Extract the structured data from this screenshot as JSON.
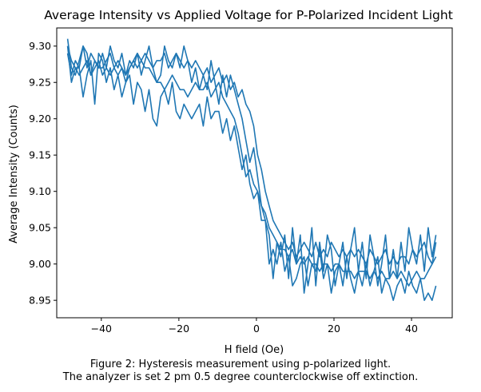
{
  "chart_data": {
    "type": "line",
    "title": "Average Intensity vs Applied Voltage for P-Polarized Incident Light",
    "xlabel": "H field (Oe)",
    "ylabel": "Average Intensity (Counts)",
    "xlim": [
      -51.5,
      50.5
    ],
    "ylim": [
      8.926,
      9.325
    ],
    "xticks": [
      -40,
      -20,
      0,
      20,
      40
    ],
    "xtick_labels": [
      "−40",
      "−20",
      "0",
      "20",
      "40"
    ],
    "yticks": [
      8.95,
      9.0,
      9.05,
      9.1,
      9.15,
      9.2,
      9.25,
      9.3
    ],
    "ytick_labels": [
      "8.95",
      "9.00",
      "9.05",
      "9.10",
      "9.15",
      "9.20",
      "9.25",
      "9.30"
    ],
    "grid": false,
    "legend": "none",
    "series": [
      {
        "color": "#1f77b4",
        "x": [
          -48.7,
          -47.7,
          -46.7,
          -45.7,
          -44.7,
          -43.7,
          -42.7,
          -41.7,
          -40.7,
          -39.7,
          -38.7,
          -37.7,
          -36.7,
          -35.7,
          -34.7,
          -33.7,
          -32.7,
          -31.7,
          -30.7,
          -29.7,
          -28.7,
          -27.7,
          -26.7,
          -25.7,
          -24.7,
          -23.7,
          -22.7,
          -21.7,
          -20.7,
          -19.7,
          -18.7,
          -17.7,
          -16.7,
          -15.7,
          -14.7,
          -13.7,
          -12.7,
          -11.7,
          -10.7,
          -9.7,
          -8.7,
          -7.7,
          -6.7,
          -5.7,
          -4.7,
          -3.7,
          -2.7,
          -1.7,
          -0.7,
          0.3,
          1.3,
          2.3,
          3.3,
          4.3,
          5.3,
          6.3,
          7.3,
          8.3,
          9.3,
          10.3,
          11.3,
          12.3,
          13.3,
          14.3,
          15.3,
          16.3,
          17.3,
          18.3,
          19.3,
          20.3,
          21.3,
          22.3,
          23.3,
          24.3,
          25.3,
          26.3,
          27.3,
          28.3,
          29.3,
          30.3,
          31.3,
          32.3,
          33.3,
          34.3,
          35.3,
          36.3,
          37.3,
          38.3,
          39.3,
          40.3,
          41.3,
          42.3,
          43.3,
          44.3,
          45.3,
          46.3
        ],
        "y": [
          9.31,
          9.27,
          9.26,
          9.28,
          9.3,
          9.27,
          9.29,
          9.28,
          9.27,
          9.27,
          9.28,
          9.29,
          9.27,
          9.26,
          9.27,
          9.25,
          9.27,
          9.28,
          9.29,
          9.28,
          9.27,
          9.27,
          9.26,
          9.25,
          9.25,
          9.24,
          9.25,
          9.26,
          9.25,
          9.24,
          9.24,
          9.23,
          9.24,
          9.25,
          9.24,
          9.24,
          9.25,
          9.23,
          9.24,
          9.25,
          9.23,
          9.22,
          9.21,
          9.2,
          9.18,
          9.15,
          9.12,
          9.13,
          9.11,
          9.1,
          9.08,
          9.07,
          9.05,
          9.04,
          9.03,
          9.02,
          9.02,
          9.01,
          9.02,
          9.0,
          9.01,
          9.0,
          9.01,
          9.0,
          9.0,
          8.99,
          9.0,
          9.0,
          8.99,
          9.0,
          9.0,
          8.99,
          8.99,
          8.99,
          8.98,
          8.99,
          8.99,
          8.99,
          8.98,
          8.99,
          8.98,
          8.99,
          8.98,
          8.98,
          8.99,
          8.98,
          8.99,
          8.98,
          8.97,
          8.98,
          8.99,
          8.98,
          8.98,
          8.99,
          9.0,
          9.01
        ]
      },
      {
        "color": "#1f77b4",
        "x": [
          46.3,
          45.3,
          44.3,
          43.3,
          42.3,
          41.3,
          40.3,
          39.3,
          38.3,
          37.3,
          36.3,
          35.3,
          34.3,
          33.3,
          32.3,
          31.3,
          30.3,
          29.3,
          28.3,
          27.3,
          26.3,
          25.3,
          24.3,
          23.3,
          22.3,
          21.3,
          20.3,
          19.3,
          18.3,
          17.3,
          16.3,
          15.3,
          14.3,
          13.3,
          12.3,
          11.3,
          10.3,
          9.3,
          8.3,
          7.3,
          6.3,
          5.3,
          4.3,
          3.3,
          2.3,
          1.3,
          0.3,
          -0.7,
          -1.7,
          -2.7,
          -3.7,
          -4.7,
          -5.7,
          -6.7,
          -7.7,
          -8.7,
          -9.7,
          -10.7,
          -11.7,
          -12.7,
          -13.7,
          -14.7,
          -15.7,
          -16.7,
          -17.7,
          -18.7,
          -19.7,
          -20.7,
          -21.7,
          -22.7,
          -23.7,
          -24.7,
          -25.7,
          -26.7,
          -27.7,
          -28.7,
          -29.7,
          -30.7,
          -31.7,
          -32.7,
          -33.7,
          -34.7,
          -35.7,
          -36.7,
          -37.7,
          -38.7,
          -39.7,
          -40.7,
          -41.7,
          -42.7,
          -43.7,
          -44.7,
          -45.7,
          -46.7,
          -47.7,
          -48.7
        ],
        "y": [
          9.03,
          9.0,
          9.01,
          9.03,
          9.02,
          9.01,
          9.02,
          9.0,
          9.01,
          9.01,
          9.0,
          9.01,
          9.0,
          9.02,
          9.01,
          9.0,
          9.01,
          9.02,
          9.0,
          9.01,
          9.02,
          9.01,
          9.02,
          9.01,
          9.02,
          9.01,
          9.02,
          9.03,
          9.01,
          9.02,
          9.01,
          9.03,
          9.01,
          9.02,
          9.03,
          9.02,
          9.01,
          9.03,
          9.02,
          9.03,
          9.04,
          9.05,
          9.06,
          9.08,
          9.1,
          9.13,
          9.15,
          9.19,
          9.21,
          9.22,
          9.24,
          9.23,
          9.25,
          9.24,
          9.26,
          9.25,
          9.27,
          9.26,
          9.25,
          9.27,
          9.26,
          9.27,
          9.28,
          9.27,
          9.28,
          9.27,
          9.28,
          9.29,
          9.28,
          9.27,
          9.29,
          9.28,
          9.28,
          9.27,
          9.28,
          9.29,
          9.28,
          9.27,
          9.28,
          9.27,
          9.26,
          9.27,
          9.28,
          9.27,
          9.26,
          9.27,
          9.26,
          9.28,
          9.27,
          9.26,
          9.28,
          9.27,
          9.26,
          9.27,
          9.28,
          9.3
        ]
      },
      {
        "color": "#1f77b4",
        "x": [
          -48.7,
          -47.7,
          -46.7,
          -45.7,
          -44.7,
          -43.7,
          -42.7,
          -41.7,
          -40.7,
          -39.7,
          -38.7,
          -37.7,
          -36.7,
          -35.7,
          -34.7,
          -33.7,
          -32.7,
          -31.7,
          -30.7,
          -29.7,
          -28.7,
          -27.7,
          -26.7,
          -25.7,
          -24.7,
          -23.7,
          -22.7,
          -21.7,
          -20.7,
          -19.7,
          -18.7,
          -17.7,
          -16.7,
          -15.7,
          -14.7,
          -13.7,
          -12.7,
          -11.7,
          -10.7,
          -9.7,
          -8.7,
          -7.7,
          -6.7,
          -5.7,
          -4.7,
          -3.7,
          -2.7,
          -1.7,
          -0.7,
          0.3,
          1.3,
          2.3,
          3.3,
          4.3,
          5.3,
          6.3,
          7.3,
          8.3,
          9.3,
          10.3,
          11.3,
          12.3,
          13.3,
          14.3,
          15.3,
          16.3,
          17.3,
          18.3,
          19.3,
          20.3,
          21.3,
          22.3,
          23.3,
          24.3,
          25.3,
          26.3,
          27.3,
          28.3,
          29.3,
          30.3,
          31.3,
          32.3,
          33.3,
          34.3,
          35.3,
          36.3,
          37.3,
          38.3,
          39.3,
          40.3,
          41.3,
          42.3,
          43.3,
          44.3,
          45.3,
          46.3
        ],
        "y": [
          9.3,
          9.25,
          9.27,
          9.27,
          9.23,
          9.26,
          9.28,
          9.22,
          9.29,
          9.28,
          9.25,
          9.27,
          9.24,
          9.26,
          9.23,
          9.25,
          9.26,
          9.22,
          9.25,
          9.24,
          9.21,
          9.24,
          9.2,
          9.19,
          9.23,
          9.24,
          9.22,
          9.25,
          9.21,
          9.2,
          9.22,
          9.21,
          9.2,
          9.21,
          9.22,
          9.19,
          9.23,
          9.2,
          9.21,
          9.21,
          9.18,
          9.2,
          9.17,
          9.19,
          9.16,
          9.13,
          9.15,
          9.11,
          9.09,
          9.1,
          9.06,
          9.06,
          9.0,
          9.02,
          9.0,
          9.03,
          8.99,
          9.01,
          8.97,
          8.98,
          9.0,
          9.01,
          8.97,
          9.0,
          8.99,
          9.02,
          8.98,
          9.0,
          8.96,
          8.99,
          9.0,
          8.97,
          9.01,
          8.98,
          8.96,
          8.99,
          8.97,
          9.0,
          8.97,
          8.99,
          9.01,
          8.96,
          8.98,
          8.97,
          8.95,
          8.97,
          8.98,
          8.96,
          8.99,
          8.97,
          8.96,
          8.98,
          8.95,
          8.96,
          8.95,
          8.97
        ]
      },
      {
        "color": "#1f77b4",
        "x": [
          46.3,
          45.3,
          44.3,
          43.3,
          42.3,
          41.3,
          40.3,
          39.3,
          38.3,
          37.3,
          36.3,
          35.3,
          34.3,
          33.3,
          32.3,
          31.3,
          30.3,
          29.3,
          28.3,
          27.3,
          26.3,
          25.3,
          24.3,
          23.3,
          22.3,
          21.3,
          20.3,
          19.3,
          18.3,
          17.3,
          16.3,
          15.3,
          14.3,
          13.3,
          12.3,
          11.3,
          10.3,
          9.3,
          8.3,
          7.3,
          6.3,
          5.3,
          4.3,
          3.3,
          2.3,
          1.3,
          0.3,
          -0.7,
          -1.7,
          -2.7,
          -3.7,
          -4.7,
          -5.7,
          -6.7,
          -7.7,
          -8.7,
          -9.7,
          -10.7,
          -11.7,
          -12.7,
          -13.7,
          -14.7,
          -15.7,
          -16.7,
          -17.7,
          -18.7,
          -19.7,
          -20.7,
          -21.7,
          -22.7,
          -23.7,
          -24.7,
          -25.7,
          -26.7,
          -27.7,
          -28.7,
          -29.7,
          -30.7,
          -31.7,
          -32.7,
          -33.7,
          -34.7,
          -35.7,
          -36.7,
          -37.7,
          -38.7,
          -39.7,
          -40.7,
          -41.7,
          -42.7,
          -43.7,
          -44.7,
          -45.7,
          -46.7,
          -47.7,
          -48.7
        ],
        "y": [
          9.04,
          9.01,
          9.05,
          8.99,
          9.04,
          9.0,
          9.02,
          9.05,
          8.99,
          9.03,
          8.98,
          9.02,
          8.98,
          9.04,
          9.0,
          8.97,
          9.01,
          9.04,
          8.98,
          9.03,
          8.99,
          9.05,
          9.02,
          8.98,
          9.03,
          9.0,
          8.97,
          9.02,
          9.04,
          8.99,
          9.03,
          8.97,
          9.05,
          9.0,
          8.96,
          9.04,
          9.0,
          9.05,
          8.98,
          9.04,
          9.01,
          9.03,
          8.98,
          9.04,
          9.06,
          9.08,
          9.12,
          9.16,
          9.14,
          9.17,
          9.2,
          9.22,
          9.24,
          9.26,
          9.23,
          9.26,
          9.22,
          9.25,
          9.28,
          9.24,
          9.26,
          9.24,
          9.27,
          9.25,
          9.28,
          9.3,
          9.27,
          9.29,
          9.27,
          9.28,
          9.3,
          9.26,
          9.25,
          9.27,
          9.3,
          9.28,
          9.26,
          9.29,
          9.27,
          9.28,
          9.26,
          9.29,
          9.27,
          9.28,
          9.3,
          9.27,
          9.29,
          9.27,
          9.28,
          9.26,
          9.29,
          9.3,
          9.27,
          9.28,
          9.26,
          9.29
        ]
      }
    ]
  },
  "caption": {
    "line1": "Figure 2: Hysteresis measurement using p-polarized light.",
    "line2": "The analyzer is set 2 pm 0.5 degree counterclockwise off extinction."
  }
}
